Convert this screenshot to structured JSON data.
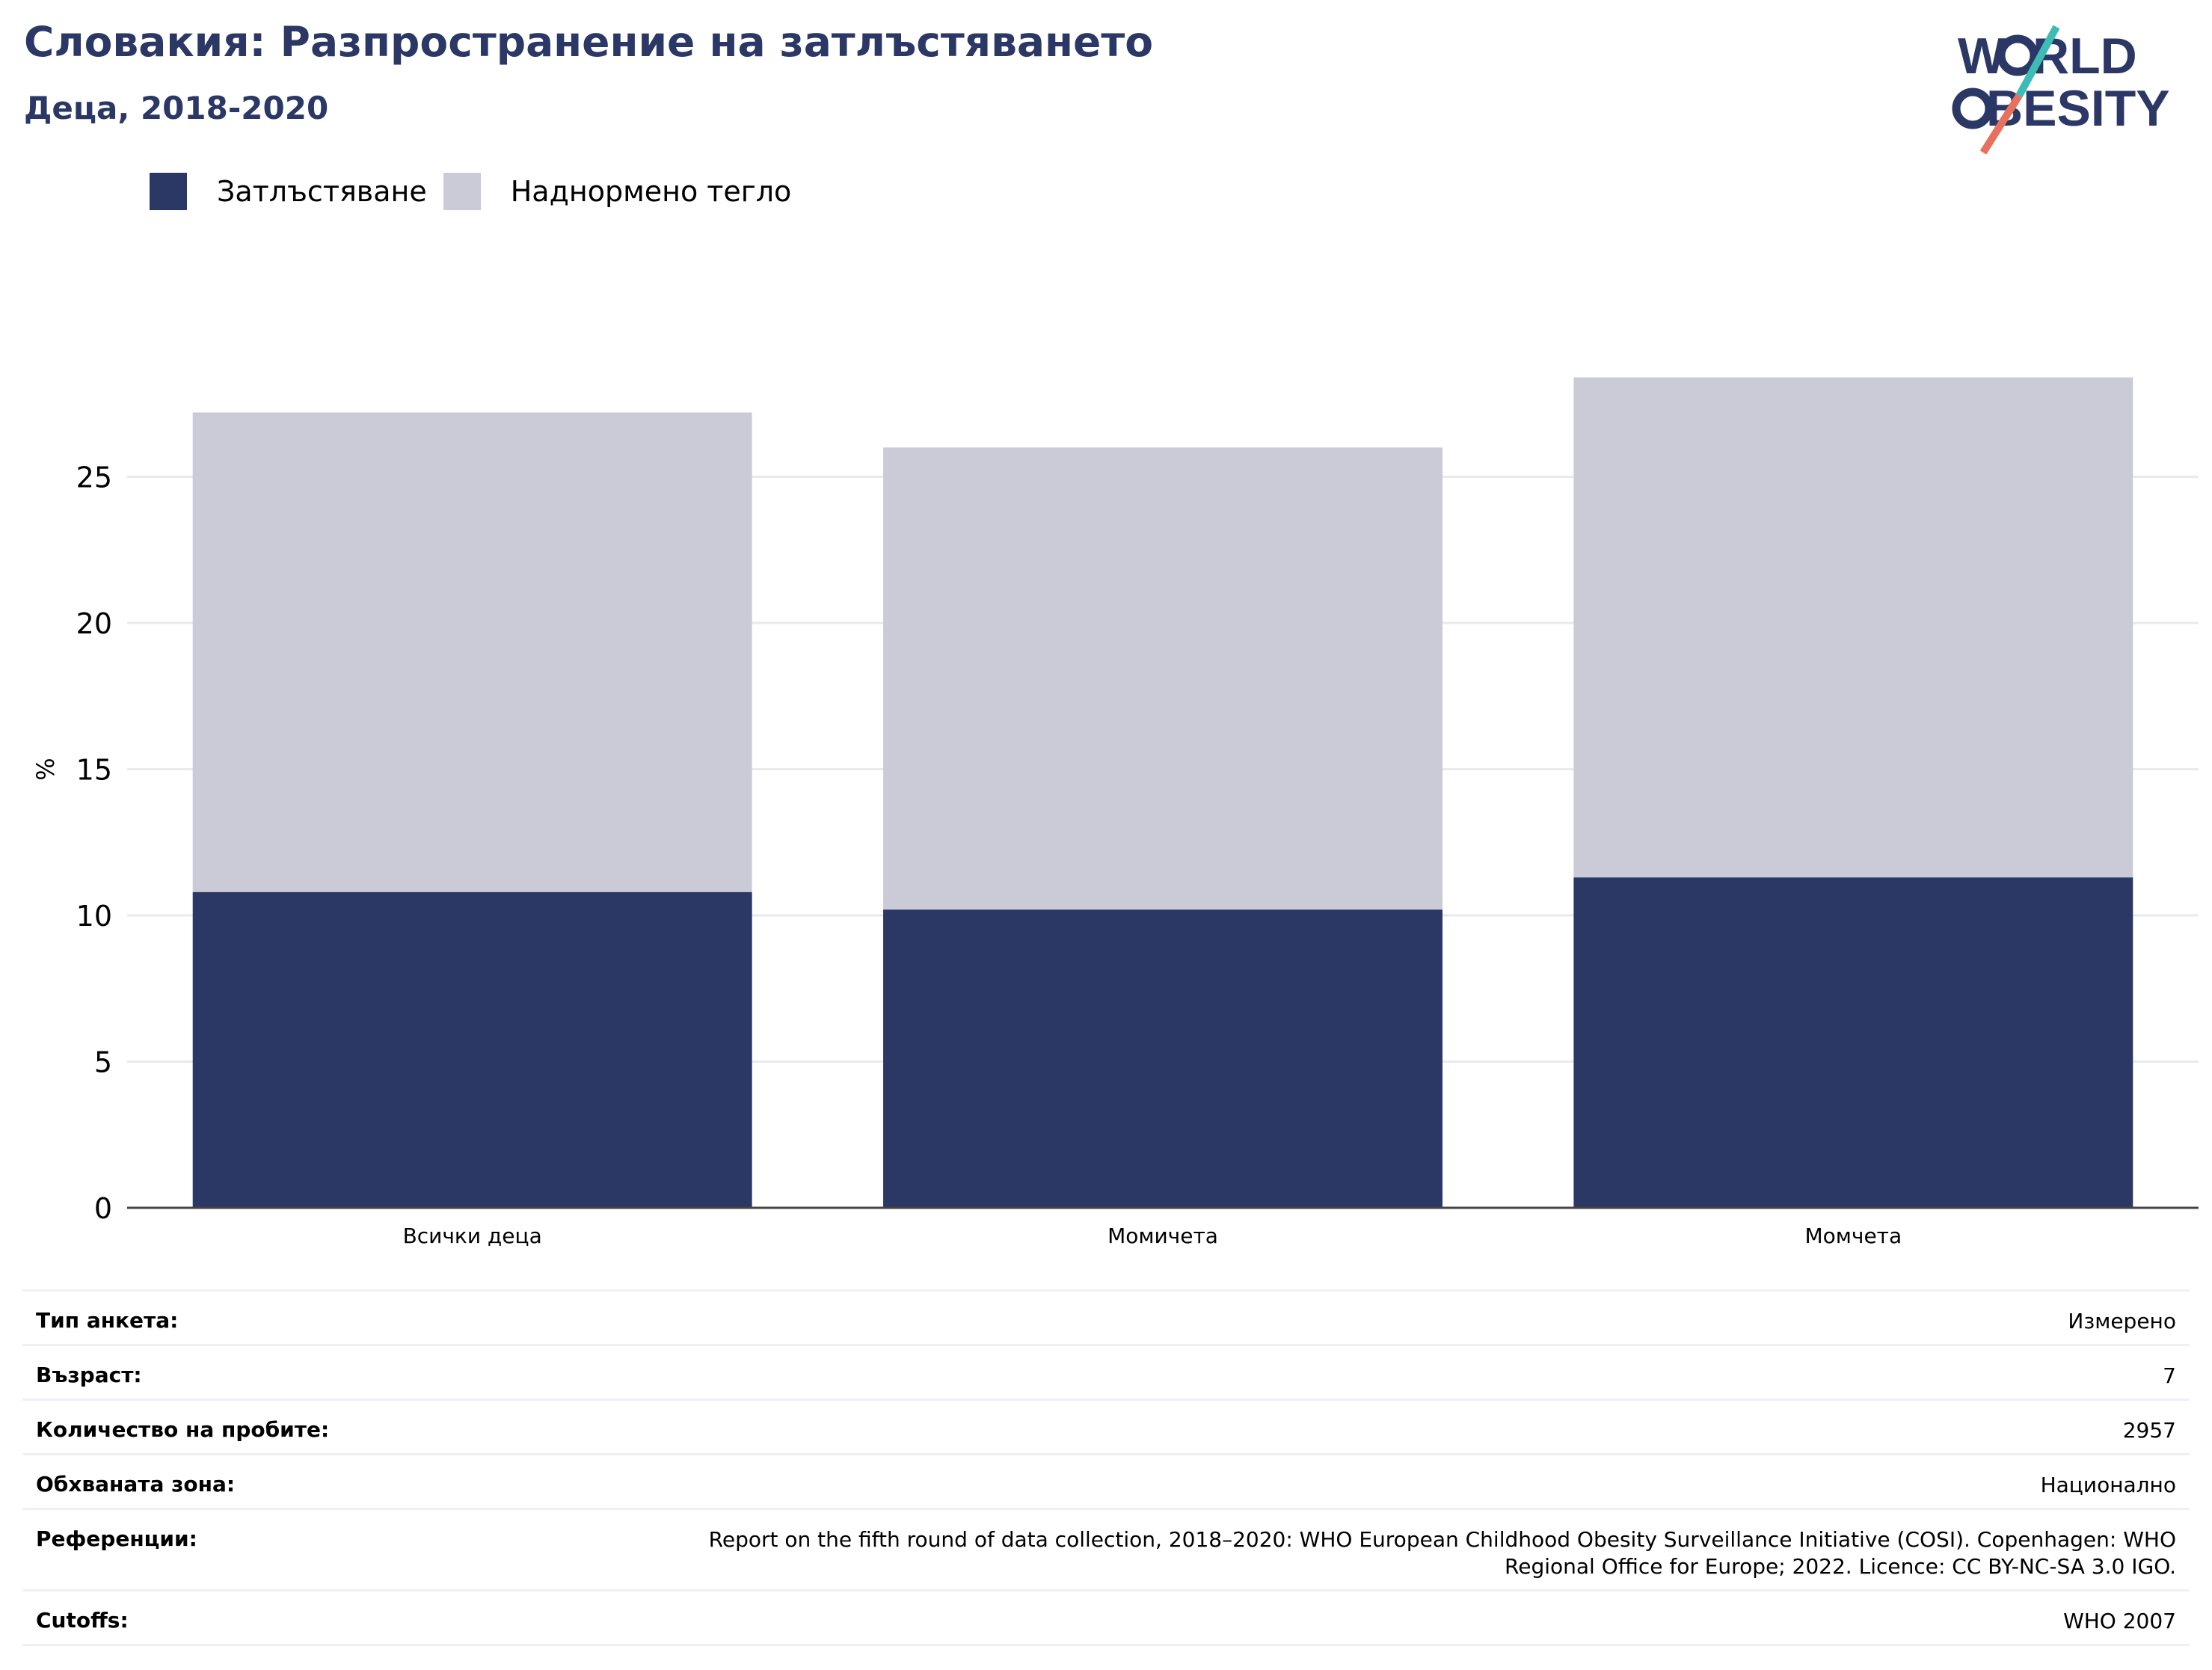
{
  "header": {
    "title": "Словакия: Разпространение на затлъстяването",
    "subtitle": "Деца, 2018-2020"
  },
  "logo": {
    "line1": "WORLD",
    "line2": "OBESITY"
  },
  "legend": [
    {
      "label": "Затлъстяване",
      "color": "#2b3765"
    },
    {
      "label": "Наднормено тегло",
      "color": "#cacbd7"
    }
  ],
  "chart_data": {
    "type": "bar",
    "stacked": true,
    "categories": [
      "Всички деца",
      "Момичета",
      "Момчета"
    ],
    "series": [
      {
        "name": "Затлъстяване",
        "values": [
          10.8,
          10.2,
          11.3
        ],
        "color": "#2b3765"
      },
      {
        "name": "Наднормено тегло",
        "values": [
          16.4,
          15.8,
          17.1
        ],
        "color": "#cacbd7"
      }
    ],
    "ylabel": "%",
    "xlabel": "",
    "ylim": [
      0,
      30
    ],
    "yticks": [
      0,
      5,
      10,
      15,
      20,
      25
    ],
    "grid": true,
    "legend_position": "top-left"
  },
  "info": [
    {
      "key": "Тип анкета:",
      "value": "Измерено"
    },
    {
      "key": "Възраст:",
      "value": "7"
    },
    {
      "key": "Количество на пробите:",
      "value": "2957"
    },
    {
      "key": "Обхваната зона:",
      "value": "Национално"
    },
    {
      "key": "Референции:",
      "value_lines": [
        "Report on the fifth round of data collection, 2018–2020: WHO European Childhood Obesity Surveillance Initiative (COSI). Copenhagen: WHO",
        "Regional Office for Europe; 2022. Licence: CC BY-NC-SA 3.0 IGO."
      ]
    },
    {
      "key": "Cutoffs:",
      "value": "WHO 2007"
    }
  ]
}
